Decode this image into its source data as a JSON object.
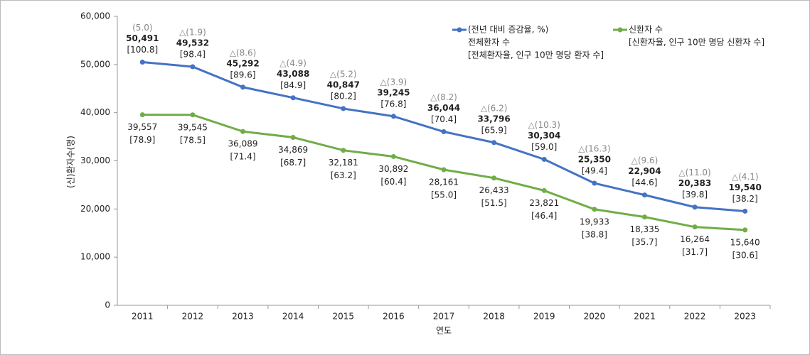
{
  "chart_data": {
    "type": "line",
    "x_label": "연도",
    "y_label": "(신)환자수(명)",
    "categories": [
      "2011",
      "2012",
      "2013",
      "2014",
      "2015",
      "2016",
      "2017",
      "2018",
      "2019",
      "2020",
      "2021",
      "2022",
      "2023"
    ],
    "ylim": [
      0,
      60000
    ],
    "yticks": [
      0,
      {
        "value": 10000,
        "label": "10,000"
      },
      {
        "value": 20000,
        "label": "20,000"
      },
      {
        "value": 30000,
        "label": "30,000"
      },
      {
        "value": 40000,
        "label": "40,000"
      },
      {
        "value": 50000,
        "label": "50,000"
      },
      {
        "value": 60000,
        "label": "60,000"
      }
    ],
    "grid": false,
    "series": [
      {
        "name": "전체환자 수",
        "legend_note_above": "(전년 대비 증감율, %)",
        "legend_note_below": "[전체환자율, 인구 10만 명당 환자 수]",
        "color": "#4472c4",
        "label_side": "above",
        "values": [
          50491,
          49532,
          45292,
          43088,
          40847,
          39245,
          36044,
          33796,
          30304,
          25350,
          22904,
          20383,
          19540
        ],
        "value_labels": [
          "50,491",
          "49,532",
          "45,292",
          "43,088",
          "40,847",
          "39,245",
          "36,044",
          "33,796",
          "30,304",
          "25,350",
          "22,904",
          "20,383",
          "19,540"
        ],
        "change_labels": [
          "(5.0)",
          "△(1.9)",
          "△(8.6)",
          "△(4.9)",
          "△(5.2)",
          "△(3.9)",
          "△(8.2)",
          "△(6.2)",
          "△(10.3)",
          "△(16.3)",
          "△(9.6)",
          "△(11.0)",
          "△(4.1)"
        ],
        "rate_labels": [
          "[100.8]",
          "[98.4]",
          "[89.6]",
          "[84.9]",
          "[80.2]",
          "[76.8]",
          "[70.4]",
          "[65.9]",
          "[59.0]",
          "[49.4]",
          "[44.6]",
          "[39.8]",
          "[38.2]"
        ]
      },
      {
        "name": "신환자 수",
        "legend_note_below": "[신환자율, 인구 10만 명당 신환자 수]",
        "color": "#70ad47",
        "label_side": "below",
        "values": [
          39557,
          39545,
          36089,
          34869,
          32181,
          30892,
          28161,
          26433,
          23821,
          19933,
          18335,
          16264,
          15640
        ],
        "value_labels": [
          "39,557",
          "39,545",
          "36,089",
          "34,869",
          "32,181",
          "30,892",
          "28,161",
          "26,433",
          "23,821",
          "19,933",
          "18,335",
          "16,264",
          "15,640"
        ],
        "rate_labels": [
          "[78.9]",
          "[78.5]",
          "[71.4]",
          "[68.7]",
          "[63.2]",
          "[60.4]",
          "[55.0]",
          "[51.5]",
          "[46.4]",
          "[38.8]",
          "[35.7]",
          "[31.7]",
          "[30.6]"
        ]
      }
    ]
  }
}
